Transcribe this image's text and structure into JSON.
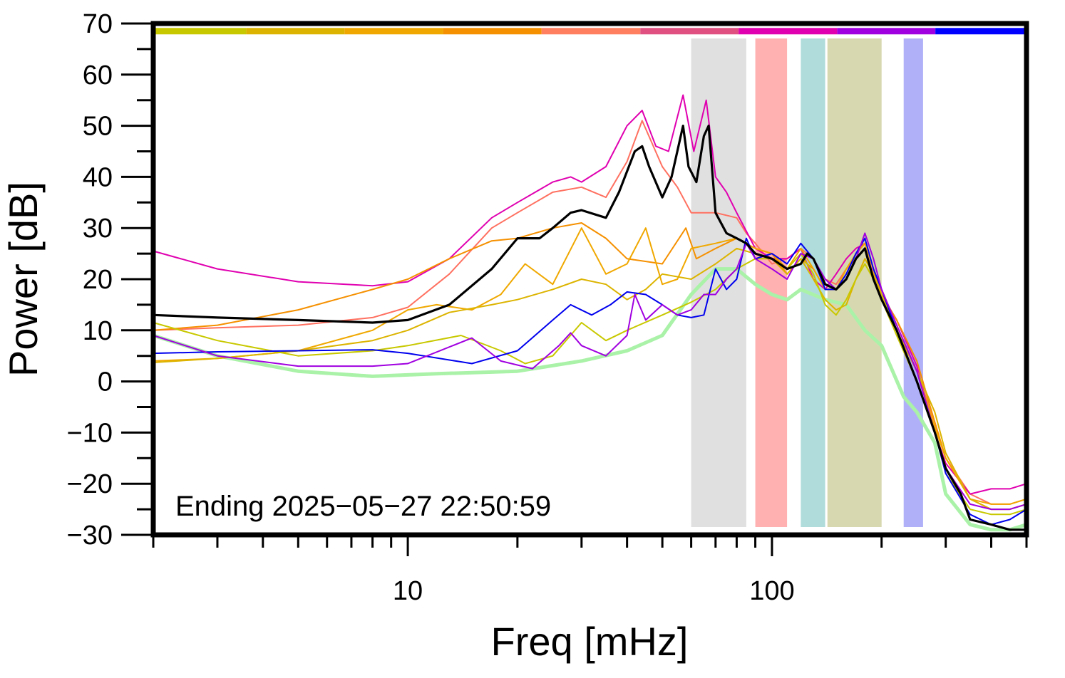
{
  "chart_data": {
    "type": "line",
    "title": "",
    "xlabel": "Freq [mHz]",
    "ylabel": "Power [dB]",
    "x_scale": "log",
    "xlim": [
      2,
      500
    ],
    "ylim": [
      -30,
      70
    ],
    "grid": false,
    "x_ticks": [
      {
        "value": 10,
        "label": "10"
      },
      {
        "value": 100,
        "label": "100"
      }
    ],
    "y_ticks": [
      {
        "value": 70,
        "label": "70"
      },
      {
        "value": 60,
        "label": "60"
      },
      {
        "value": 50,
        "label": "50"
      },
      {
        "value": 40,
        "label": "40"
      },
      {
        "value": 30,
        "label": "30"
      },
      {
        "value": 20,
        "label": "20"
      },
      {
        "value": 10,
        "label": "10"
      },
      {
        "value": 0,
        "label": "0"
      },
      {
        "value": -10,
        "label": "−10"
      },
      {
        "value": -20,
        "label": "−20"
      },
      {
        "value": -30,
        "label": "−30"
      }
    ],
    "annotation": "Ending 2025−05−27 22:50:59",
    "color_bar": {
      "y_value": 68.5,
      "segments": [
        {
          "x0": 2,
          "x1": 3.6,
          "color": "#c8c800"
        },
        {
          "x0": 3.6,
          "x1": 6.7,
          "color": "#dcb400"
        },
        {
          "x0": 6.7,
          "x1": 12.5,
          "color": "#f0a800"
        },
        {
          "x0": 12.5,
          "x1": 23.3,
          "color": "#f59000"
        },
        {
          "x0": 23.3,
          "x1": 43.5,
          "color": "#ff7f60"
        },
        {
          "x0": 43.5,
          "x1": 81,
          "color": "#e05080"
        },
        {
          "x0": 81,
          "x1": 151,
          "color": "#e000b0"
        },
        {
          "x0": 151,
          "x1": 281,
          "color": "#a000e0"
        },
        {
          "x0": 281,
          "x1": 500,
          "color": "#0000ff"
        }
      ]
    },
    "bands": [
      {
        "x0": 60,
        "x1": 85,
        "color": "#e0e0e0"
      },
      {
        "x0": 90,
        "x1": 110,
        "color": "#ffb0b0"
      },
      {
        "x0": 120,
        "x1": 140,
        "color": "#b0dcdc"
      },
      {
        "x0": 142,
        "x1": 200,
        "color": "#d8d8b0"
      },
      {
        "x0": 230,
        "x1": 260,
        "color": "#b0b0f8"
      }
    ],
    "series": [
      {
        "color": "#aaf2a8",
        "width": 5,
        "x": [
          2,
          3,
          5,
          8,
          12,
          20,
          30,
          40,
          50,
          60,
          70,
          80,
          90,
          100,
          110,
          120,
          140,
          160,
          180,
          200,
          230,
          250,
          280,
          300,
          350,
          400,
          450,
          500
        ],
        "values": [
          9,
          5,
          2,
          1,
          1.5,
          2,
          4,
          6,
          9,
          17,
          22,
          22,
          19,
          17,
          16,
          18,
          16,
          15,
          10,
          7,
          -3,
          -6,
          -12,
          -22,
          -28,
          -29,
          -29,
          -28
        ]
      },
      {
        "color": "#ff7060",
        "width": 2,
        "x": [
          2,
          3,
          5,
          8,
          10,
          13,
          17,
          20,
          25,
          30,
          35,
          40,
          44,
          50,
          55,
          60,
          70,
          80,
          85,
          90,
          100,
          110,
          120,
          130,
          140,
          150,
          160,
          170,
          180,
          190,
          200,
          220,
          250,
          280,
          300,
          350,
          400,
          450,
          500
        ],
        "values": [
          10,
          10.5,
          11,
          12.5,
          14.5,
          21,
          30,
          33,
          37,
          38,
          36,
          43,
          51,
          42,
          38,
          33,
          33,
          32,
          29,
          27,
          23,
          24,
          26,
          24,
          20,
          19,
          22,
          24,
          26,
          21,
          17,
          10,
          2,
          -8,
          -15,
          -22,
          -24,
          -24,
          -23
        ]
      },
      {
        "color": "#e000b0",
        "width": 2,
        "x": [
          2,
          3,
          5,
          8,
          10,
          13,
          17,
          20,
          25,
          28,
          30,
          35,
          40,
          44,
          48,
          52,
          57,
          61,
          66,
          70,
          75,
          80,
          90,
          100,
          110,
          120,
          130,
          140,
          150,
          160,
          170,
          180,
          190,
          200,
          220,
          250,
          280,
          300,
          350,
          400,
          450,
          500
        ],
        "values": [
          25.5,
          22,
          19.5,
          18.7,
          19.5,
          24,
          32,
          35,
          39,
          40,
          39,
          42,
          50,
          53,
          46,
          45,
          56,
          45,
          55,
          40,
          37,
          33,
          26,
          24,
          24,
          26,
          20,
          18,
          21,
          24,
          26,
          27,
          22,
          17,
          12,
          3,
          -10,
          -16,
          -22,
          -21,
          -21,
          -20
        ]
      },
      {
        "color": "#f59000",
        "width": 2,
        "x": [
          2,
          3,
          5,
          8,
          10,
          13,
          17,
          20,
          25,
          30,
          35,
          40,
          50,
          58,
          62,
          70,
          80,
          90,
          100,
          110,
          120,
          130,
          140,
          150,
          160,
          170,
          180,
          190,
          200,
          220,
          250,
          280,
          300,
          350,
          400,
          450,
          500
        ],
        "values": [
          10,
          11,
          14,
          18,
          20,
          24,
          27.5,
          28,
          30,
          31,
          28,
          24,
          23,
          30,
          24,
          26,
          28,
          26,
          25,
          21,
          24,
          22,
          18,
          18,
          21,
          25,
          27,
          22,
          17,
          12,
          4,
          -8,
          -15,
          -23,
          -25,
          -25,
          -24
        ]
      },
      {
        "color": "#f0a800",
        "width": 2,
        "x": [
          2,
          3,
          5,
          8,
          10,
          12,
          15,
          18,
          21,
          25,
          30,
          35,
          40,
          45,
          50,
          55,
          60,
          70,
          80,
          90,
          100,
          110,
          120,
          130,
          140,
          150,
          160,
          170,
          180,
          190,
          200,
          220,
          250,
          280,
          300,
          350,
          400,
          450,
          500
        ],
        "values": [
          4,
          4.5,
          6,
          10,
          14,
          15,
          14,
          17,
          23,
          19,
          30,
          21,
          23,
          30,
          19,
          20,
          26,
          27,
          28,
          26,
          25,
          22,
          26,
          22,
          18,
          18,
          22,
          25,
          27,
          22,
          18,
          11,
          2,
          -9,
          -15,
          -23,
          -24,
          -24,
          -23
        ]
      },
      {
        "color": "#dcb400",
        "width": 2,
        "x": [
          2,
          3,
          5,
          8,
          10,
          13,
          17,
          20,
          25,
          30,
          35,
          40,
          45,
          50,
          60,
          70,
          80,
          90,
          100,
          110,
          120,
          130,
          140,
          150,
          160,
          170,
          180,
          190,
          200,
          220,
          250,
          280,
          300,
          350,
          400,
          450,
          500
        ],
        "values": [
          3.7,
          4.5,
          6,
          8,
          10,
          13.5,
          15,
          16,
          18,
          20,
          19,
          16,
          18,
          21,
          20,
          23,
          26,
          25,
          24,
          21,
          24,
          20,
          16,
          14,
          15,
          20,
          24,
          21,
          17,
          10,
          2,
          -6,
          -14,
          -23,
          -25,
          -25,
          -24
        ]
      },
      {
        "color": "#c8c800",
        "width": 2,
        "x": [
          2,
          3,
          5,
          8,
          10,
          14,
          18,
          21,
          25,
          30,
          35,
          40,
          50,
          60,
          70,
          80,
          90,
          100,
          110,
          120,
          130,
          140,
          150,
          160,
          170,
          180,
          190,
          200,
          220,
          250,
          280,
          300,
          350,
          400,
          450,
          500
        ],
        "values": [
          11.5,
          8,
          5,
          6,
          7,
          9,
          6,
          3.5,
          5,
          11.5,
          8,
          10,
          13,
          15.5,
          18,
          22,
          24,
          24,
          22,
          25,
          21,
          15,
          13,
          16,
          20,
          23,
          20,
          16,
          9,
          0,
          -10,
          -18,
          -25,
          -26,
          -26,
          -25
        ]
      },
      {
        "color": "#0000ee",
        "width": 2,
        "x": [
          2,
          3,
          5,
          8,
          10,
          15,
          20,
          25,
          28,
          32,
          36,
          40,
          45,
          50,
          55,
          60,
          65,
          70,
          75,
          80,
          85,
          90,
          100,
          110,
          120,
          130,
          140,
          150,
          160,
          170,
          180,
          190,
          200,
          220,
          250,
          280,
          300,
          350,
          400,
          450,
          500
        ],
        "values": [
          5.5,
          5.8,
          6,
          6.2,
          5.5,
          3.5,
          6,
          12,
          15,
          13,
          15,
          17.5,
          17,
          15,
          13,
          12.5,
          13,
          22,
          18,
          20,
          28,
          24,
          25,
          23,
          27,
          24,
          18,
          18,
          21,
          25,
          28,
          22,
          18,
          10,
          0,
          -10,
          -18,
          -26,
          -28,
          -27,
          -25
        ]
      },
      {
        "color": "#a000e0",
        "width": 2,
        "x": [
          2,
          3,
          5,
          8,
          10,
          15,
          18,
          22,
          26,
          28,
          30,
          35,
          40,
          42,
          45,
          50,
          55,
          60,
          65,
          70,
          75,
          80,
          85,
          90,
          100,
          110,
          120,
          130,
          140,
          150,
          160,
          170,
          180,
          190,
          200,
          220,
          250,
          280,
          300,
          350,
          400,
          450,
          500
        ],
        "values": [
          9,
          5,
          3,
          3,
          3.5,
          8.5,
          4,
          2.5,
          7,
          9.5,
          7,
          5,
          9,
          17,
          12,
          15,
          13,
          14,
          17,
          17,
          20,
          22,
          27,
          24,
          22,
          20,
          25,
          24,
          20,
          18,
          20,
          24,
          29,
          24,
          18,
          11,
          2,
          -10,
          -17,
          -24,
          -25,
          -25,
          -24
        ]
      },
      {
        "color": "#000000",
        "width": 3.2,
        "x": [
          2,
          3,
          5,
          8,
          10,
          13,
          17,
          20,
          23,
          25,
          28,
          30,
          35,
          38,
          42,
          44,
          46,
          50,
          53,
          57,
          59,
          62,
          65,
          67,
          70,
          75,
          80,
          85,
          90,
          100,
          110,
          120,
          125,
          130,
          140,
          150,
          160,
          170,
          180,
          190,
          200,
          220,
          250,
          280,
          300,
          330,
          350,
          400,
          450,
          500
        ],
        "values": [
          13,
          12.5,
          12,
          11.5,
          12,
          15,
          22,
          28,
          28,
          30,
          33,
          33.5,
          32,
          37,
          45,
          46,
          42,
          36,
          40,
          50,
          42,
          39,
          48,
          50,
          33,
          29,
          28,
          27,
          25,
          24,
          22,
          23,
          25,
          24,
          19,
          18,
          20,
          24,
          26,
          20,
          16,
          10,
          0,
          -10,
          -17,
          -22,
          -27,
          -28,
          -29,
          -29
        ]
      }
    ]
  }
}
